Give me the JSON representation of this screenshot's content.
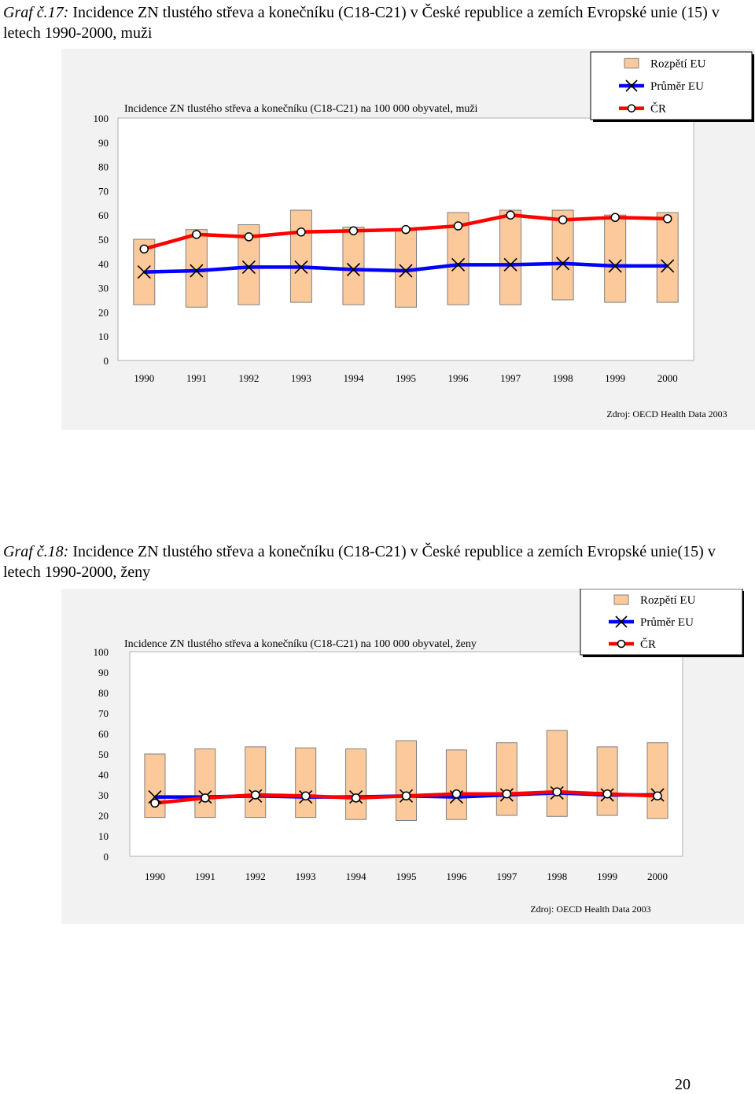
{
  "page_number": "20",
  "colors": {
    "range_fill": "#fcc99b",
    "range_stroke": "#7f7f7f",
    "eu_mean_line": "#0000ff",
    "cr_line": "#ff0000",
    "panel_bg": "#f2f2f2"
  },
  "chart_data": [
    {
      "type": "line",
      "title_label": "Graf č.17:",
      "title_text": " Incidence ZN tlustého střeva a konečníku (C18-C21) v České republice a zemích Evropské unie (15) v letech 1990-2000, muži",
      "inner_title": "Incidence ZN tlustého střeva a konečníku (C18-C21) na 100 000 obyvatel, muži",
      "source": "Zdroj: OECD Health Data 2003",
      "legend": [
        "Rozpětí EU",
        "Průměr EU",
        "ČR"
      ],
      "categories": [
        "1990",
        "1991",
        "1992",
        "1993",
        "1994",
        "1995",
        "1996",
        "1997",
        "1998",
        "1999",
        "2000"
      ],
      "yticks": [
        "0",
        "10",
        "20",
        "30",
        "40",
        "50",
        "60",
        "70",
        "80",
        "90",
        "100"
      ],
      "ylim": [
        0,
        100
      ],
      "series": [
        {
          "name": "Rozpětí EU min",
          "values": [
            23,
            22,
            23,
            24,
            23,
            22,
            23,
            23,
            25,
            24,
            24
          ]
        },
        {
          "name": "Rozpětí EU max",
          "values": [
            50,
            54,
            56,
            62,
            55,
            54,
            61,
            62,
            62,
            60,
            61
          ]
        },
        {
          "name": "Průměr EU",
          "values": [
            36.5,
            37,
            38.5,
            38.5,
            37.5,
            37,
            39.5,
            39.5,
            40,
            39,
            39
          ]
        },
        {
          "name": "ČR",
          "values": [
            46,
            52,
            51,
            53,
            53.5,
            54,
            55.5,
            60,
            58,
            59,
            58.5
          ]
        }
      ]
    },
    {
      "type": "line",
      "title_label": "Graf č.18:",
      "title_text": " Incidence ZN tlustého střeva a konečníku (C18-C21) v České republice a zemích Evropské unie(15) v letech 1990-2000, ženy",
      "inner_title": "Incidence ZN tlustého střeva a konečníku (C18-C21) na 100 000 obyvatel, ženy",
      "source": "Zdroj: OECD Health Data 2003",
      "legend": [
        "Rozpětí EU",
        "Průměr EU",
        "ČR"
      ],
      "categories": [
        "1990",
        "1991",
        "1992",
        "1993",
        "1994",
        "1995",
        "1996",
        "1997",
        "1998",
        "1999",
        "2000"
      ],
      "yticks": [
        "0",
        "10",
        "20",
        "30",
        "40",
        "50",
        "60",
        "70",
        "80",
        "90",
        "100"
      ],
      "ylim": [
        0,
        100
      ],
      "series": [
        {
          "name": "Rozpětí EU min",
          "values": [
            19,
            19,
            19,
            19,
            18,
            17.5,
            18,
            20,
            19.5,
            20,
            18.5
          ]
        },
        {
          "name": "Rozpětí EU max",
          "values": [
            50,
            52.5,
            53.5,
            53,
            52.5,
            56.5,
            52,
            55.5,
            61.5,
            53.5,
            55.5
          ]
        },
        {
          "name": "Průměr EU",
          "values": [
            29,
            29,
            29.5,
            29,
            29,
            29.5,
            29,
            30,
            31,
            30,
            30
          ]
        },
        {
          "name": "ČR",
          "values": [
            26,
            28.5,
            30,
            29.5,
            28.5,
            29.5,
            30.5,
            30.5,
            31.5,
            30.5,
            29.5
          ]
        }
      ]
    }
  ]
}
